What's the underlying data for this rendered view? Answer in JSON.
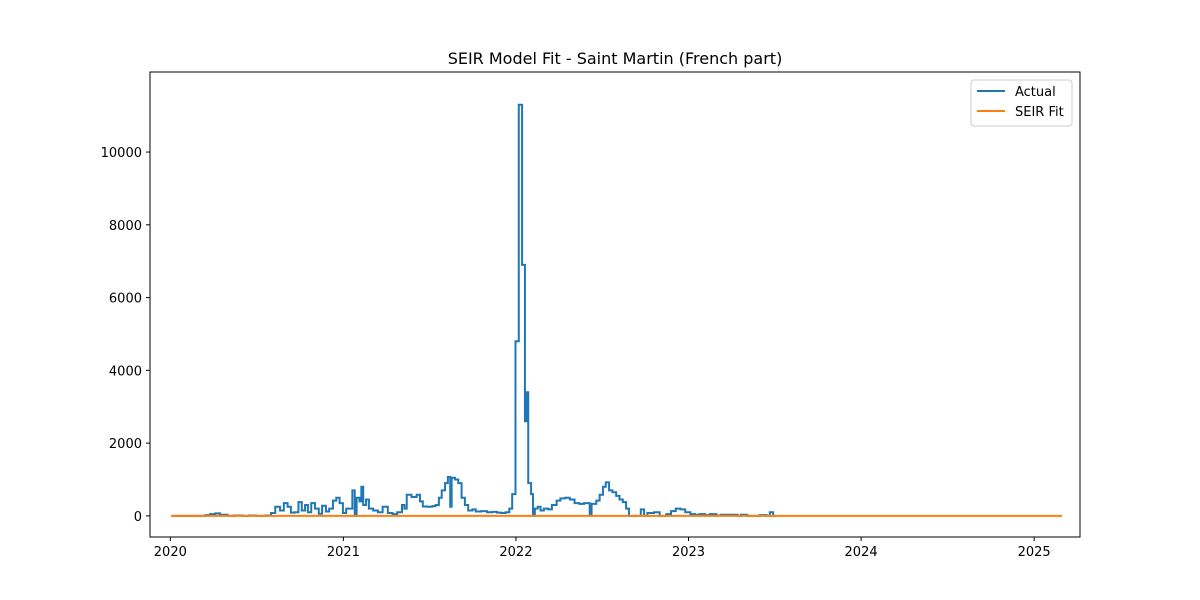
{
  "chart_data": {
    "type": "line",
    "title": "SEIR Model Fit - Saint Martin (French part)",
    "xlabel": "",
    "ylabel": "",
    "x_axis_type": "date",
    "xlim": [
      "2019-11-19",
      "2025-04-08"
    ],
    "ylim": [
      -580,
      12200
    ],
    "x_tick_labels": [
      "2020",
      "2021",
      "2022",
      "2023",
      "2024",
      "2025"
    ],
    "x_ticks": [
      "2020-01-01",
      "2021-01-01",
      "2022-01-01",
      "2023-01-01",
      "2024-01-01",
      "2025-01-01"
    ],
    "y_tick_labels": [
      "0",
      "2000",
      "4000",
      "6000",
      "8000",
      "10000"
    ],
    "y_ticks": [
      0,
      2000,
      4000,
      6000,
      8000,
      10000
    ],
    "grid": false,
    "legend": {
      "position": "top-right",
      "entries": [
        "Actual",
        "SEIR Fit"
      ]
    },
    "colors": {
      "Actual": "#1f77b4",
      "SEIR Fit": "#ff7f0e"
    },
    "series": [
      {
        "name": "Actual",
        "step": true,
        "points": [
          [
            "2020-01-03",
            0
          ],
          [
            "2020-02-10",
            0
          ],
          [
            "2020-03-15",
            20
          ],
          [
            "2020-03-25",
            50
          ],
          [
            "2020-04-05",
            70
          ],
          [
            "2020-04-15",
            30
          ],
          [
            "2020-05-01",
            0
          ],
          [
            "2020-05-15",
            10
          ],
          [
            "2020-06-01",
            0
          ],
          [
            "2020-06-15",
            10
          ],
          [
            "2020-07-01",
            0
          ],
          [
            "2020-07-20",
            10
          ],
          [
            "2020-08-01",
            80
          ],
          [
            "2020-08-10",
            250
          ],
          [
            "2020-08-20",
            150
          ],
          [
            "2020-08-28",
            350
          ],
          [
            "2020-09-05",
            250
          ],
          [
            "2020-09-12",
            90
          ],
          [
            "2020-09-20",
            100
          ],
          [
            "2020-09-28",
            380
          ],
          [
            "2020-10-05",
            150
          ],
          [
            "2020-10-12",
            300
          ],
          [
            "2020-10-18",
            100
          ],
          [
            "2020-10-25",
            350
          ],
          [
            "2020-11-02",
            200
          ],
          [
            "2020-11-10",
            60
          ],
          [
            "2020-11-17",
            280
          ],
          [
            "2020-11-25",
            120
          ],
          [
            "2020-12-02",
            200
          ],
          [
            "2020-12-10",
            420
          ],
          [
            "2020-12-17",
            500
          ],
          [
            "2020-12-24",
            350
          ],
          [
            "2020-12-31",
            80
          ],
          [
            "2021-01-07",
            200
          ],
          [
            "2021-01-14",
            200
          ],
          [
            "2021-01-20",
            700
          ],
          [
            "2021-01-25",
            0
          ],
          [
            "2021-01-29",
            500
          ],
          [
            "2021-02-04",
            400
          ],
          [
            "2021-02-08",
            800
          ],
          [
            "2021-02-12",
            300
          ],
          [
            "2021-02-18",
            450
          ],
          [
            "2021-02-24",
            200
          ],
          [
            "2021-03-05",
            150
          ],
          [
            "2021-03-15",
            100
          ],
          [
            "2021-03-25",
            250
          ],
          [
            "2021-04-05",
            80
          ],
          [
            "2021-04-15",
            50
          ],
          [
            "2021-04-25",
            100
          ],
          [
            "2021-05-05",
            300
          ],
          [
            "2021-05-10",
            200
          ],
          [
            "2021-05-15",
            580
          ],
          [
            "2021-05-25",
            520
          ],
          [
            "2021-06-05",
            580
          ],
          [
            "2021-06-12",
            400
          ],
          [
            "2021-06-18",
            260
          ],
          [
            "2021-06-28",
            250
          ],
          [
            "2021-07-08",
            270
          ],
          [
            "2021-07-15",
            300
          ],
          [
            "2021-07-22",
            500
          ],
          [
            "2021-07-28",
            700
          ],
          [
            "2021-08-04",
            900
          ],
          [
            "2021-08-10",
            1070
          ],
          [
            "2021-08-15",
            250
          ],
          [
            "2021-08-18",
            1050
          ],
          [
            "2021-08-25",
            1000
          ],
          [
            "2021-09-01",
            900
          ],
          [
            "2021-09-08",
            500
          ],
          [
            "2021-09-15",
            300
          ],
          [
            "2021-09-22",
            150
          ],
          [
            "2021-10-01",
            180
          ],
          [
            "2021-10-08",
            120
          ],
          [
            "2021-10-20",
            130
          ],
          [
            "2021-11-01",
            100
          ],
          [
            "2021-11-12",
            110
          ],
          [
            "2021-11-22",
            90
          ],
          [
            "2021-12-01",
            80
          ],
          [
            "2021-12-10",
            100
          ],
          [
            "2021-12-18",
            200
          ],
          [
            "2021-12-24",
            600
          ],
          [
            "2021-12-31",
            4800
          ],
          [
            "2022-01-07",
            11300
          ],
          [
            "2022-01-14",
            6900
          ],
          [
            "2022-01-20",
            2600
          ],
          [
            "2022-01-23",
            3400
          ],
          [
            "2022-01-27",
            900
          ],
          [
            "2022-02-02",
            600
          ],
          [
            "2022-02-06",
            0
          ],
          [
            "2022-02-10",
            200
          ],
          [
            "2022-02-16",
            250
          ],
          [
            "2022-02-22",
            150
          ],
          [
            "2022-03-01",
            200
          ],
          [
            "2022-03-10",
            180
          ],
          [
            "2022-03-18",
            300
          ],
          [
            "2022-03-28",
            420
          ],
          [
            "2022-04-05",
            480
          ],
          [
            "2022-04-15",
            500
          ],
          [
            "2022-04-25",
            450
          ],
          [
            "2022-05-05",
            350
          ],
          [
            "2022-05-15",
            330
          ],
          [
            "2022-05-25",
            350
          ],
          [
            "2022-06-03",
            350
          ],
          [
            "2022-06-06",
            0
          ],
          [
            "2022-06-10",
            330
          ],
          [
            "2022-06-20",
            420
          ],
          [
            "2022-06-27",
            580
          ],
          [
            "2022-07-04",
            800
          ],
          [
            "2022-07-10",
            920
          ],
          [
            "2022-07-17",
            700
          ],
          [
            "2022-07-24",
            650
          ],
          [
            "2022-08-01",
            550
          ],
          [
            "2022-08-08",
            450
          ],
          [
            "2022-08-15",
            380
          ],
          [
            "2022-08-22",
            200
          ],
          [
            "2022-08-28",
            0
          ],
          [
            "2022-09-15",
            0
          ],
          [
            "2022-09-22",
            180
          ],
          [
            "2022-09-29",
            0
          ],
          [
            "2022-10-06",
            80
          ],
          [
            "2022-10-20",
            100
          ],
          [
            "2022-11-01",
            0
          ],
          [
            "2022-11-15",
            50
          ],
          [
            "2022-11-25",
            130
          ],
          [
            "2022-12-05",
            200
          ],
          [
            "2022-12-15",
            180
          ],
          [
            "2022-12-25",
            100
          ],
          [
            "2023-01-05",
            50
          ],
          [
            "2023-01-15",
            30
          ],
          [
            "2023-01-25",
            50
          ],
          [
            "2023-02-05",
            20
          ],
          [
            "2023-02-15",
            50
          ],
          [
            "2023-03-01",
            10
          ],
          [
            "2023-03-10",
            30
          ],
          [
            "2023-04-15",
            0
          ],
          [
            "2023-04-22",
            30
          ],
          [
            "2023-05-05",
            0
          ],
          [
            "2023-06-01",
            20
          ],
          [
            "2023-06-15",
            0
          ],
          [
            "2023-06-22",
            100
          ],
          [
            "2023-06-29",
            0
          ],
          [
            "2023-07-06",
            0
          ]
        ]
      },
      {
        "name": "SEIR Fit",
        "step": false,
        "points": [
          [
            "2020-01-03",
            0
          ],
          [
            "2025-03-01",
            0
          ]
        ]
      }
    ]
  }
}
